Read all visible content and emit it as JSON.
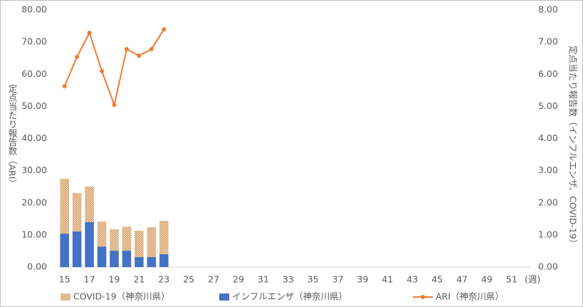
{
  "chart_data": {
    "type": "bar-line",
    "x_label": "(週)",
    "y_label": "定点当たり報告数（ARI）",
    "y2_label": "定点当たり報告数（インフルエンザ、COVID-19）",
    "categories": [
      "15",
      null,
      "17",
      null,
      "19",
      null,
      "21",
      null,
      "23",
      null,
      "25",
      null,
      "27",
      null,
      "29",
      null,
      "31",
      null,
      "33",
      null,
      "35",
      null,
      "37",
      null,
      "39",
      null,
      "41",
      null,
      "43",
      null,
      "45",
      null,
      "47",
      null,
      "49",
      null,
      "51",
      null
    ],
    "series": [
      {
        "name": "COVID-19（神奈川県）",
        "type": "bar",
        "stack": true,
        "pattern": "dots",
        "color": "#c98a4b",
        "axis": "y2",
        "values": [
          1.71,
          1.2,
          1.11,
          0.78,
          0.67,
          0.75,
          0.82,
          0.93,
          1.04,
          null,
          null,
          null,
          null,
          null,
          null,
          null,
          null,
          null,
          null,
          null,
          null,
          null,
          null,
          null,
          null,
          null,
          null,
          null,
          null,
          null,
          null,
          null,
          null,
          null,
          null,
          null,
          null,
          null
        ]
      },
      {
        "name": "インフルエンザ（神奈川県）",
        "type": "bar",
        "color": "#4472c4",
        "axis": "y2",
        "values": [
          1.04,
          1.11,
          1.4,
          0.64,
          0.51,
          0.51,
          0.31,
          0.31,
          0.4,
          null,
          null,
          null,
          null,
          null,
          null,
          null,
          null,
          null,
          null,
          null,
          null,
          null,
          null,
          null,
          null,
          null,
          null,
          null,
          null,
          null,
          null,
          null,
          null,
          null,
          null,
          null,
          null,
          null
        ]
      },
      {
        "name": "ARI（神奈川県）",
        "type": "line",
        "color": "#ed7d31",
        "values": [
          56.3,
          65.4,
          72.9,
          61.0,
          50.5,
          67.8,
          65.8,
          67.8,
          74.0,
          null,
          null,
          null,
          null,
          null,
          null,
          null,
          null,
          null,
          null,
          null,
          null,
          null,
          null,
          null,
          null,
          null,
          null,
          null,
          null,
          null,
          null,
          null,
          null,
          null,
          null,
          null,
          null,
          null
        ]
      }
    ],
    "ylim": [
      0,
      80
    ],
    "yticks": [
      {
        "value": 0,
        "label": "0.00"
      },
      {
        "value": 10,
        "label": "10.00"
      },
      {
        "value": 20,
        "label": "20.00"
      },
      {
        "value": 30,
        "label": "30.00"
      },
      {
        "value": 40,
        "label": "40.00"
      },
      {
        "value": 50,
        "label": "50.00"
      },
      {
        "value": 60,
        "label": "60.00"
      },
      {
        "value": 70,
        "label": "70.00"
      },
      {
        "value": 80,
        "label": "80.00"
      }
    ],
    "y2lim": [
      0,
      8
    ],
    "y2ticks": [
      {
        "value": 0,
        "label": "0.00"
      },
      {
        "value": 1,
        "label": "1.00"
      },
      {
        "value": 2,
        "label": "2.00"
      },
      {
        "value": 3,
        "label": "3.00"
      },
      {
        "value": 4,
        "label": "4.00"
      },
      {
        "value": 5,
        "label": "5.00"
      },
      {
        "value": 6,
        "label": "6.00"
      },
      {
        "value": 7,
        "label": "7.00"
      },
      {
        "value": 8,
        "label": "8.00"
      }
    ],
    "legend": "bottom"
  }
}
